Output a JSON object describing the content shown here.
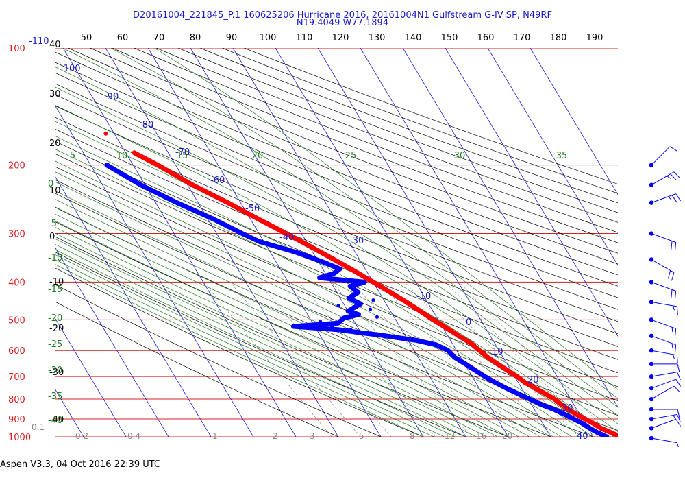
{
  "title_line1": "D20161004_221845_P.1 160625206 Hurricane 2016, 20161004N1 Gulfstream G-IV SP, N49RF",
  "title_line2": "N19.4049 W77.1894",
  "footer": "Aspen V3.3, 04 Oct 2016  22:39 UTC",
  "colors": {
    "pressure_lines": "#d62020",
    "isotherms": "#1a1acc",
    "dry_adiabats": "#000000",
    "moist_adiabats": "#1d7a1d",
    "mixing_ratio": "#888888",
    "temperature_profile": "#ff0000",
    "dewpoint_profile": "#0000ff",
    "wind_barbs": "#0000ff"
  },
  "chart_data": {
    "type": "skew-t",
    "x_axis_top": {
      "label": "",
      "ticks": [
        "50",
        "60",
        "70",
        "80",
        "90",
        "100",
        "110",
        "120",
        "130",
        "140",
        "150",
        "160",
        "170",
        "180",
        "190"
      ]
    },
    "pressure_axis": {
      "ticks": [
        "100",
        "200",
        "300",
        "400",
        "500",
        "600",
        "700",
        "800",
        "900",
        "1000"
      ],
      "range": [
        100,
        1000
      ],
      "scale": "log"
    },
    "height_kft_labels": [
      "40",
      "30",
      "20",
      "10",
      "0",
      "-10",
      "-20",
      "-30",
      "-40"
    ],
    "isotherm_labels": [
      "-110",
      "-100",
      "-90",
      "-80",
      "-70",
      "-60",
      "-50",
      "-40",
      "-30",
      "-10",
      "0",
      "10",
      "20",
      "30",
      "40"
    ],
    "moist_adiabat_labels": [
      "5",
      "10",
      "15",
      "20",
      "25",
      "30",
      "35"
    ],
    "left_green_labels": [
      "0",
      "-5",
      "-10",
      "-15",
      "-20",
      "-25",
      "-30",
      "-35",
      "-40"
    ],
    "mixing_ratio_labels": [
      "0.1",
      "0.2",
      "0.4",
      "1",
      "2",
      "3",
      "5",
      "8",
      "12",
      "16",
      "20"
    ],
    "temperature_profile": {
      "name": "",
      "points": [
        [
          1000,
          26.5
        ],
        [
          975,
          24.8
        ],
        [
          950,
          23.0
        ],
        [
          925,
          22.0
        ],
        [
          900,
          20.6
        ],
        [
          875,
          19.2
        ],
        [
          850,
          18.0
        ],
        [
          825,
          17.0
        ],
        [
          800,
          16.2
        ],
        [
          775,
          14.8
        ],
        [
          750,
          13.2
        ],
        [
          725,
          11.6
        ],
        [
          700,
          10.6
        ],
        [
          675,
          9.2
        ],
        [
          650,
          7.8
        ],
        [
          625,
          6.4
        ],
        [
          600,
          5.4
        ],
        [
          575,
          4.4
        ],
        [
          550,
          2.6
        ],
        [
          525,
          0.8
        ],
        [
          500,
          -1.2
        ],
        [
          475,
          -3.0
        ],
        [
          450,
          -5.0
        ],
        [
          425,
          -7.4
        ],
        [
          400,
          -10.0
        ],
        [
          375,
          -12.8
        ],
        [
          350,
          -16.0
        ],
        [
          325,
          -19.6
        ],
        [
          300,
          -23.6
        ],
        [
          275,
          -28.2
        ],
        [
          250,
          -33.0
        ],
        [
          225,
          -38.8
        ],
        [
          200,
          -44.2
        ],
        [
          186,
          -48.0
        ]
      ],
      "isolated_point": [
        166,
        -52.0
      ]
    },
    "dewpoint_profile": {
      "name": "",
      "points": [
        [
          1000,
          23.2
        ],
        [
          975,
          21.6
        ],
        [
          950,
          20.4
        ],
        [
          925,
          19.4
        ],
        [
          900,
          18.0
        ],
        [
          875,
          16.4
        ],
        [
          850,
          14.6
        ],
        [
          825,
          12.2
        ],
        [
          800,
          10.4
        ],
        [
          775,
          8.4
        ],
        [
          750,
          6.4
        ],
        [
          725,
          4.6
        ],
        [
          700,
          3.0
        ],
        [
          675,
          1.6
        ],
        [
          650,
          0.2
        ],
        [
          625,
          -1.4
        ],
        [
          600,
          -2.0
        ],
        [
          580,
          -4.0
        ],
        [
          565,
          -8.0
        ],
        [
          555,
          -12.5
        ],
        [
          548,
          -15.5
        ],
        [
          540,
          -20.0
        ],
        [
          530,
          -25.0
        ],
        [
          520,
          -35.0
        ],
        [
          510,
          -24.0
        ],
        [
          495,
          -22.0
        ],
        [
          485,
          -18.0
        ],
        [
          475,
          -20.0
        ],
        [
          455,
          -16.0
        ],
        [
          440,
          -18.0
        ],
        [
          425,
          -15.0
        ],
        [
          410,
          -16.0
        ],
        [
          400,
          -12.0
        ],
        [
          390,
          -22.0
        ],
        [
          380,
          -18.0
        ],
        [
          370,
          -16.0
        ],
        [
          355,
          -19.0
        ],
        [
          335,
          -24.0
        ],
        [
          315,
          -31.0
        ],
        [
          300,
          -34.0
        ],
        [
          275,
          -38.8
        ],
        [
          250,
          -45.0
        ],
        [
          225,
          -51.0
        ],
        [
          200,
          -56.2
        ]
      ],
      "scattered_points": [
        [
          492,
          -14.0
        ],
        [
          488,
          -20.0
        ],
        [
          505,
          -28.0
        ],
        [
          515,
          -30.5
        ],
        [
          522,
          -26.0
        ],
        [
          518,
          -33.5
        ],
        [
          530,
          -22.0
        ],
        [
          470,
          -14.5
        ],
        [
          460,
          -21.5
        ],
        [
          445,
          -12.5
        ]
      ]
    },
    "wind_barbs": {
      "pressure_levels": [
        200,
        225,
        250,
        300,
        350,
        400,
        450,
        500,
        550,
        600,
        650,
        700,
        750,
        800,
        850,
        900,
        950,
        1000
      ],
      "speed_kt": [
        10,
        25,
        25,
        20,
        20,
        20,
        15,
        15,
        15,
        15,
        10,
        10,
        10,
        10,
        10,
        15,
        10,
        5
      ],
      "direction_deg": [
        45,
        60,
        70,
        110,
        120,
        110,
        100,
        110,
        110,
        100,
        90,
        80,
        70,
        60,
        90,
        80,
        70,
        100
      ]
    }
  }
}
